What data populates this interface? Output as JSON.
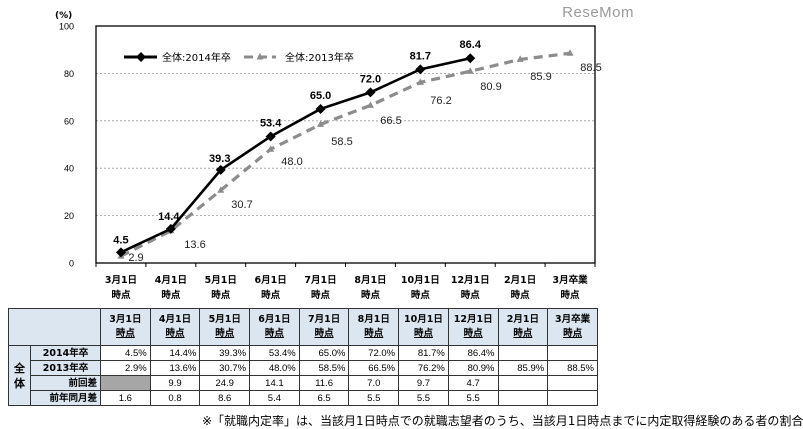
{
  "watermark": "ReseMom",
  "chart_data": {
    "type": "line",
    "title": "",
    "ylabel": "(%)",
    "xlabel": "",
    "ylim": [
      0,
      100
    ],
    "yticks": [
      0,
      20,
      40,
      60,
      80,
      100
    ],
    "grid": true,
    "legend_position": "top-left inside",
    "categories": [
      "3月1日\n時点",
      "4月1日\n時点",
      "5月1日\n時点",
      "6月1日\n時点",
      "7月1日\n時点",
      "8月1日\n時点",
      "10月1日\n時点",
      "12月1日\n時点",
      "2月1日\n時点",
      "3月卒業\n時点"
    ],
    "series": [
      {
        "name": "全体:2014年卒",
        "style": "solid-black-diamond",
        "color": "#000000",
        "values": [
          4.5,
          14.4,
          39.3,
          53.4,
          65.0,
          72.0,
          81.7,
          86.4,
          null,
          null
        ]
      },
      {
        "name": "全体:2013年卒",
        "style": "dashed-gray-triangle",
        "color": "#8c8c8c",
        "values": [
          2.9,
          13.6,
          30.7,
          48.0,
          58.5,
          66.5,
          76.2,
          80.9,
          85.9,
          88.5
        ]
      }
    ]
  },
  "table": {
    "group_label": "全体",
    "headers": [
      [
        "3月1日",
        "時点"
      ],
      [
        "4月1日",
        "時点"
      ],
      [
        "5月1日",
        "時点"
      ],
      [
        "6月1日",
        "時点"
      ],
      [
        "7月1日",
        "時点"
      ],
      [
        "8月1日",
        "時点"
      ],
      [
        "10月1日",
        "時点"
      ],
      [
        "12月1日",
        "時点"
      ],
      [
        "2月1日",
        "時点"
      ],
      [
        "3月卒業",
        "時点"
      ]
    ],
    "rows": [
      {
        "label": "2014年卒",
        "cells": [
          "4.5%",
          "14.4%",
          "39.3%",
          "53.4%",
          "65.0%",
          "72.0%",
          "81.7%",
          "86.4%",
          "",
          ""
        ]
      },
      {
        "label": "2013年卒",
        "cells": [
          "2.9%",
          "13.6%",
          "30.7%",
          "48.0%",
          "58.5%",
          "66.5%",
          "76.2%",
          "80.9%",
          "85.9%",
          "88.5%"
        ]
      },
      {
        "label": "前回差",
        "cells": [
          "",
          "9.9",
          "24.9",
          "14.1",
          "11.6",
          "7.0",
          "9.7",
          "4.7",
          "",
          ""
        ]
      },
      {
        "label": "前年同月差",
        "cells": [
          "1.6",
          "0.8",
          "8.6",
          "5.4",
          "6.5",
          "5.5",
          "5.5",
          "5.5",
          "",
          ""
        ]
      }
    ]
  },
  "footnote": "※「就職内定率」は、当該月1日時点での就職志望者のうち、当該月1日時点までに内定取得経験のある者の割合"
}
